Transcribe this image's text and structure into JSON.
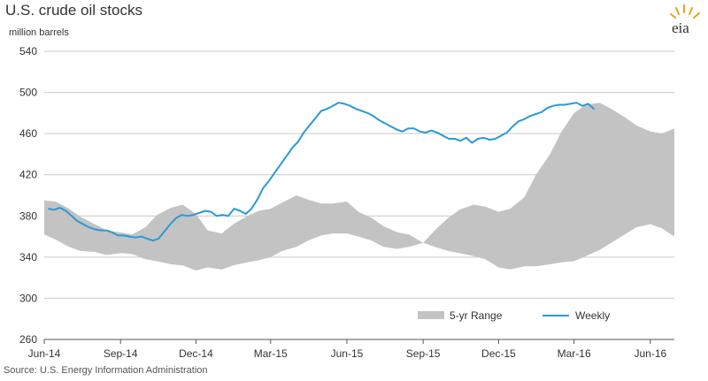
{
  "title": "U.S. crude oil stocks",
  "unit_label": "million barrels",
  "source": "Source: U.S. Energy Information Administration",
  "logo_text": "eia",
  "colors": {
    "range": "#c3c3c3",
    "weekly": "#2a9ad6",
    "grid": "#c9c9c9",
    "axis": "#555555",
    "logo_sun": "#e8a21a",
    "logo_text": "#333333"
  },
  "chart_data": {
    "type": "area",
    "title": "U.S. crude oil stocks",
    "ylabel": "million barrels",
    "xlabel": "",
    "ylim": [
      260,
      540
    ],
    "y_ticks": [
      260,
      300,
      340,
      380,
      420,
      460,
      500,
      540
    ],
    "x_ticks": [
      "Jun-14",
      "Sep-14",
      "Dec-14",
      "Mar-15",
      "Jun-15",
      "Sep-15",
      "Dec-15",
      "Mar-16",
      "Jun-16"
    ],
    "x_axis_start": "2014-06-01",
    "x_axis_end": "2016-06-30",
    "grid": true,
    "legend": "bottom-right",
    "series": [
      {
        "name": "5-yr Range",
        "type": "band",
        "x": [
          "2014-06-01",
          "2014-06-15",
          "2014-07-01",
          "2014-07-15",
          "2014-08-01",
          "2014-08-15",
          "2014-09-01",
          "2014-09-15",
          "2014-10-01",
          "2014-10-15",
          "2014-11-01",
          "2014-11-15",
          "2014-12-01",
          "2014-12-15",
          "2015-01-01",
          "2015-01-15",
          "2015-02-01",
          "2015-02-15",
          "2015-03-01",
          "2015-03-15",
          "2015-04-01",
          "2015-04-15",
          "2015-05-01",
          "2015-05-15",
          "2015-06-01",
          "2015-06-15",
          "2015-07-01",
          "2015-07-15",
          "2015-08-01",
          "2015-08-15",
          "2015-09-01",
          "2015-09-15",
          "2015-10-01",
          "2015-10-15",
          "2015-11-01",
          "2015-11-15",
          "2015-12-01",
          "2015-12-15",
          "2016-01-01",
          "2016-01-15",
          "2016-02-01",
          "2016-02-15",
          "2016-03-01",
          "2016-03-15",
          "2016-04-01",
          "2016-04-15",
          "2016-05-01",
          "2016-05-15",
          "2016-06-01",
          "2016-06-15",
          "2016-06-30"
        ],
        "low": [
          362,
          357,
          350,
          346,
          345,
          342,
          344,
          343,
          338,
          336,
          333,
          332,
          327,
          330,
          328,
          332,
          335,
          337,
          340,
          346,
          350,
          356,
          361,
          363,
          363,
          360,
          356,
          350,
          348,
          350,
          354,
          350,
          346,
          344,
          341,
          338,
          330,
          328,
          331,
          331,
          333,
          335,
          336,
          341,
          347,
          354,
          362,
          369,
          372,
          368,
          360
        ],
        "high": [
          395,
          394,
          387,
          379,
          372,
          366,
          364,
          362,
          369,
          381,
          388,
          391,
          382,
          366,
          363,
          372,
          380,
          385,
          387,
          393,
          400,
          396,
          392,
          392,
          394,
          384,
          378,
          370,
          364,
          362,
          354,
          366,
          378,
          386,
          391,
          389,
          384,
          387,
          398,
          420,
          440,
          462,
          480,
          488,
          490,
          484,
          476,
          468,
          462,
          460,
          465
        ]
      },
      {
        "name": "Weekly",
        "type": "line",
        "x": [
          "2014-06-06",
          "2014-06-13",
          "2014-06-20",
          "2014-06-27",
          "2014-07-04",
          "2014-07-11",
          "2014-07-18",
          "2014-07-25",
          "2014-08-01",
          "2014-08-08",
          "2014-08-15",
          "2014-08-22",
          "2014-08-29",
          "2014-09-05",
          "2014-09-12",
          "2014-09-19",
          "2014-09-26",
          "2014-10-03",
          "2014-10-10",
          "2014-10-17",
          "2014-10-24",
          "2014-10-31",
          "2014-11-07",
          "2014-11-14",
          "2014-11-21",
          "2014-11-28",
          "2014-12-05",
          "2014-12-12",
          "2014-12-19",
          "2014-12-26",
          "2015-01-02",
          "2015-01-09",
          "2015-01-16",
          "2015-01-23",
          "2015-01-30",
          "2015-02-06",
          "2015-02-13",
          "2015-02-20",
          "2015-02-27",
          "2015-03-06",
          "2015-03-13",
          "2015-03-20",
          "2015-03-27",
          "2015-04-03",
          "2015-04-10",
          "2015-04-17",
          "2015-04-24",
          "2015-05-01",
          "2015-05-08",
          "2015-05-15",
          "2015-05-22",
          "2015-05-29",
          "2015-06-05",
          "2015-06-12",
          "2015-06-19",
          "2015-06-26",
          "2015-07-03",
          "2015-07-10",
          "2015-07-17",
          "2015-07-24",
          "2015-07-31",
          "2015-08-07",
          "2015-08-14",
          "2015-08-21",
          "2015-08-28",
          "2015-09-04",
          "2015-09-11",
          "2015-09-18",
          "2015-09-25",
          "2015-10-02",
          "2015-10-09",
          "2015-10-16",
          "2015-10-23",
          "2015-10-30",
          "2015-11-06",
          "2015-11-13",
          "2015-11-20",
          "2015-11-27",
          "2015-12-04",
          "2015-12-11",
          "2015-12-18",
          "2015-12-25",
          "2016-01-01",
          "2016-01-08",
          "2016-01-15",
          "2016-01-22",
          "2016-01-29",
          "2016-02-05",
          "2016-02-12",
          "2016-02-19",
          "2016-02-26",
          "2016-03-04",
          "2016-03-11",
          "2016-03-18",
          "2016-03-25"
        ],
        "values": [
          387,
          386,
          388,
          385,
          380,
          375,
          372,
          369,
          367,
          366,
          366,
          364,
          361,
          361,
          360,
          359,
          360,
          358,
          356,
          358,
          365,
          372,
          378,
          381,
          380,
          381,
          383,
          385,
          384,
          380,
          381,
          380,
          387,
          385,
          382,
          387,
          396,
          407,
          414,
          422,
          430,
          438,
          446,
          452,
          461,
          468,
          475,
          482,
          484,
          487,
          490,
          489,
          487,
          484,
          482,
          480,
          477,
          473,
          470,
          467,
          464,
          462,
          465,
          465,
          462,
          461,
          463,
          461,
          458,
          455,
          455,
          453,
          456,
          451,
          455,
          456,
          454,
          455,
          458,
          461,
          467,
          472,
          474,
          477,
          479,
          481,
          485,
          487,
          488,
          488,
          489,
          490,
          487,
          489,
          484
        ],
        "values_tail_note": ""
      }
    ]
  }
}
